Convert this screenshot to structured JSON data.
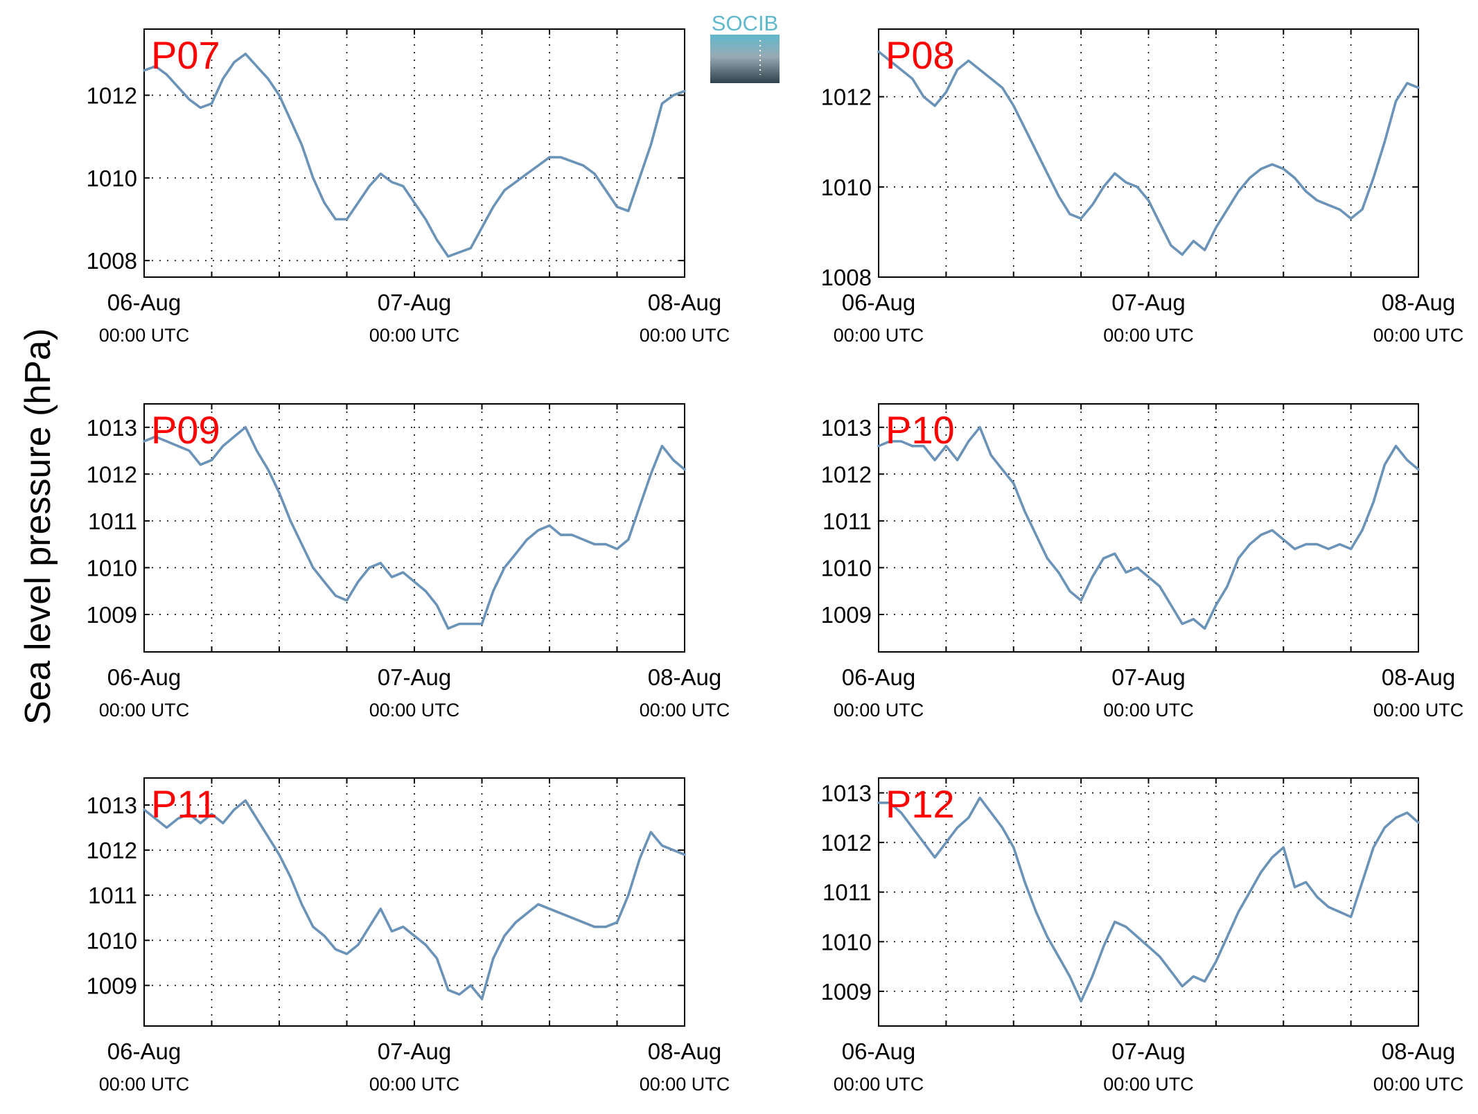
{
  "figure": {
    "ylabel": "Sea level pressure (hPa)",
    "logo": {
      "text": "SOCIB",
      "colors": [
        "#5fb8cc",
        "#98aab4",
        "#2f424c"
      ]
    },
    "line_color": "#6a93b7",
    "station_color": "#ff0000"
  },
  "chart_data": [
    {
      "type": "line",
      "title": "P07",
      "x_unit": "hours since 06-Aug 00:00 UTC",
      "xlim": [
        0,
        48
      ],
      "ylim": [
        1007.6,
        1013.6
      ],
      "yticks": [
        1008,
        1010,
        1012
      ],
      "xticks": [
        0,
        24,
        48
      ],
      "xtick_labels": [
        [
          "06-Aug",
          "00:00 UTC"
        ],
        [
          "07-Aug",
          "00:00 UTC"
        ],
        [
          "08-Aug",
          "00:00 UTC"
        ]
      ],
      "grid": true,
      "x": [
        0,
        1,
        2,
        3,
        4,
        5,
        6,
        7,
        8,
        9,
        10,
        11,
        12,
        13,
        14,
        15,
        16,
        17,
        18,
        19,
        20,
        21,
        22,
        23,
        24,
        25,
        26,
        27,
        28,
        29,
        30,
        31,
        32,
        33,
        34,
        35,
        36,
        37,
        38,
        39,
        40,
        41,
        42,
        43,
        44,
        45,
        46,
        47,
        48
      ],
      "values": [
        1012.6,
        1012.7,
        1012.5,
        1012.2,
        1011.9,
        1011.7,
        1011.8,
        1012.4,
        1012.8,
        1013.0,
        1012.7,
        1012.4,
        1012.0,
        1011.4,
        1010.8,
        1010.0,
        1009.4,
        1009.0,
        1009.0,
        1009.4,
        1009.8,
        1010.1,
        1009.9,
        1009.8,
        1009.4,
        1009.0,
        1008.5,
        1008.1,
        1008.2,
        1008.3,
        1008.8,
        1009.3,
        1009.7,
        1009.9,
        1010.1,
        1010.3,
        1010.5,
        1010.5,
        1010.4,
        1010.3,
        1010.1,
        1009.7,
        1009.3,
        1009.2,
        1010.0,
        1010.8,
        1011.8,
        1012.0,
        1012.1
      ]
    },
    {
      "type": "line",
      "title": "P08",
      "x_unit": "hours since 06-Aug 00:00 UTC",
      "xlim": [
        0,
        48
      ],
      "ylim": [
        1008,
        1013.5
      ],
      "yticks": [
        1008,
        1010,
        1012
      ],
      "xticks": [
        0,
        24,
        48
      ],
      "xtick_labels": [
        [
          "06-Aug",
          "00:00 UTC"
        ],
        [
          "07-Aug",
          "00:00 UTC"
        ],
        [
          "08-Aug",
          "00:00 UTC"
        ]
      ],
      "grid": true,
      "x": [
        0,
        1,
        2,
        3,
        4,
        5,
        6,
        7,
        8,
        9,
        10,
        11,
        12,
        13,
        14,
        15,
        16,
        17,
        18,
        19,
        20,
        21,
        22,
        23,
        24,
        25,
        26,
        27,
        28,
        29,
        30,
        31,
        32,
        33,
        34,
        35,
        36,
        37,
        38,
        39,
        40,
        41,
        42,
        43,
        44,
        45,
        46,
        47,
        48
      ],
      "values": [
        1013.0,
        1012.8,
        1012.6,
        1012.4,
        1012.0,
        1011.8,
        1012.1,
        1012.6,
        1012.8,
        1012.6,
        1012.4,
        1012.2,
        1011.8,
        1011.3,
        1010.8,
        1010.3,
        1009.8,
        1009.4,
        1009.3,
        1009.6,
        1010.0,
        1010.3,
        1010.1,
        1010.0,
        1009.7,
        1009.2,
        1008.7,
        1008.5,
        1008.8,
        1008.6,
        1009.1,
        1009.5,
        1009.9,
        1010.2,
        1010.4,
        1010.5,
        1010.4,
        1010.2,
        1009.9,
        1009.7,
        1009.6,
        1009.5,
        1009.3,
        1009.5,
        1010.2,
        1011.0,
        1011.9,
        1012.3,
        1012.2
      ]
    },
    {
      "type": "line",
      "title": "P09",
      "x_unit": "hours since 06-Aug 00:00 UTC",
      "xlim": [
        0,
        48
      ],
      "ylim": [
        1008.2,
        1013.5
      ],
      "yticks": [
        1009,
        1010,
        1011,
        1012,
        1013
      ],
      "xticks": [
        0,
        24,
        48
      ],
      "xtick_labels": [
        [
          "06-Aug",
          "00:00 UTC"
        ],
        [
          "07-Aug",
          "00:00 UTC"
        ],
        [
          "08-Aug",
          "00:00 UTC"
        ]
      ],
      "grid": true,
      "x": [
        0,
        1,
        2,
        3,
        4,
        5,
        6,
        7,
        8,
        9,
        10,
        11,
        12,
        13,
        14,
        15,
        16,
        17,
        18,
        19,
        20,
        21,
        22,
        23,
        24,
        25,
        26,
        27,
        28,
        29,
        30,
        31,
        32,
        33,
        34,
        35,
        36,
        37,
        38,
        39,
        40,
        41,
        42,
        43,
        44,
        45,
        46,
        47,
        48
      ],
      "values": [
        1012.7,
        1012.8,
        1012.7,
        1012.6,
        1012.5,
        1012.2,
        1012.3,
        1012.6,
        1012.8,
        1013.0,
        1012.5,
        1012.1,
        1011.6,
        1011.0,
        1010.5,
        1010.0,
        1009.7,
        1009.4,
        1009.3,
        1009.7,
        1010.0,
        1010.1,
        1009.8,
        1009.9,
        1009.7,
        1009.5,
        1009.2,
        1008.7,
        1008.8,
        1008.8,
        1008.8,
        1009.5,
        1010.0,
        1010.3,
        1010.6,
        1010.8,
        1010.9,
        1010.7,
        1010.7,
        1010.6,
        1010.5,
        1010.5,
        1010.4,
        1010.6,
        1011.3,
        1012.0,
        1012.6,
        1012.3,
        1012.1
      ]
    },
    {
      "type": "line",
      "title": "P10",
      "x_unit": "hours since 06-Aug 00:00 UTC",
      "xlim": [
        0,
        48
      ],
      "ylim": [
        1008.2,
        1013.5
      ],
      "yticks": [
        1009,
        1010,
        1011,
        1012,
        1013
      ],
      "xticks": [
        0,
        24,
        48
      ],
      "xtick_labels": [
        [
          "06-Aug",
          "00:00 UTC"
        ],
        [
          "07-Aug",
          "00:00 UTC"
        ],
        [
          "08-Aug",
          "00:00 UTC"
        ]
      ],
      "grid": true,
      "x": [
        0,
        1,
        2,
        3,
        4,
        5,
        6,
        7,
        8,
        9,
        10,
        11,
        12,
        13,
        14,
        15,
        16,
        17,
        18,
        19,
        20,
        21,
        22,
        23,
        24,
        25,
        26,
        27,
        28,
        29,
        30,
        31,
        32,
        33,
        34,
        35,
        36,
        37,
        38,
        39,
        40,
        41,
        42,
        43,
        44,
        45,
        46,
        47,
        48
      ],
      "values": [
        1012.6,
        1012.7,
        1012.7,
        1012.6,
        1012.6,
        1012.3,
        1012.6,
        1012.3,
        1012.7,
        1013.0,
        1012.4,
        1012.1,
        1011.8,
        1011.2,
        1010.7,
        1010.2,
        1009.9,
        1009.5,
        1009.3,
        1009.8,
        1010.2,
        1010.3,
        1009.9,
        1010.0,
        1009.8,
        1009.6,
        1009.2,
        1008.8,
        1008.9,
        1008.7,
        1009.2,
        1009.6,
        1010.2,
        1010.5,
        1010.7,
        1010.8,
        1010.6,
        1010.4,
        1010.5,
        1010.5,
        1010.4,
        1010.5,
        1010.4,
        1010.8,
        1011.4,
        1012.2,
        1012.6,
        1012.3,
        1012.1
      ]
    },
    {
      "type": "line",
      "title": "P11",
      "x_unit": "hours since 06-Aug 00:00 UTC",
      "xlim": [
        0,
        48
      ],
      "ylim": [
        1008.1,
        1013.6
      ],
      "yticks": [
        1009,
        1010,
        1011,
        1012,
        1013
      ],
      "xticks": [
        0,
        24,
        48
      ],
      "xtick_labels": [
        [
          "06-Aug",
          "00:00 UTC"
        ],
        [
          "07-Aug",
          "00:00 UTC"
        ],
        [
          "08-Aug",
          "00:00 UTC"
        ]
      ],
      "grid": true,
      "x": [
        0,
        1,
        2,
        3,
        4,
        5,
        6,
        7,
        8,
        9,
        10,
        11,
        12,
        13,
        14,
        15,
        16,
        17,
        18,
        19,
        20,
        21,
        22,
        23,
        24,
        25,
        26,
        27,
        28,
        29,
        30,
        31,
        32,
        33,
        34,
        35,
        36,
        37,
        38,
        39,
        40,
        41,
        42,
        43,
        44,
        45,
        46,
        47,
        48
      ],
      "values": [
        1012.9,
        1012.7,
        1012.5,
        1012.7,
        1012.8,
        1012.6,
        1012.8,
        1012.6,
        1012.9,
        1013.1,
        1012.7,
        1012.3,
        1011.9,
        1011.4,
        1010.8,
        1010.3,
        1010.1,
        1009.8,
        1009.7,
        1009.9,
        1010.3,
        1010.7,
        1010.2,
        1010.3,
        1010.1,
        1009.9,
        1009.6,
        1008.9,
        1008.8,
        1009.0,
        1008.7,
        1009.6,
        1010.1,
        1010.4,
        1010.6,
        1010.8,
        1010.7,
        1010.6,
        1010.5,
        1010.4,
        1010.3,
        1010.3,
        1010.4,
        1011.0,
        1011.8,
        1012.4,
        1012.1,
        1012.0,
        1011.9
      ]
    },
    {
      "type": "line",
      "title": "P12",
      "x_unit": "hours since 06-Aug 00:00 UTC",
      "xlim": [
        0,
        48
      ],
      "ylim": [
        1008.3,
        1013.3
      ],
      "yticks": [
        1009,
        1010,
        1011,
        1012,
        1013
      ],
      "xticks": [
        0,
        24,
        48
      ],
      "xtick_labels": [
        [
          "06-Aug",
          "00:00 UTC"
        ],
        [
          "07-Aug",
          "00:00 UTC"
        ],
        [
          "08-Aug",
          "00:00 UTC"
        ]
      ],
      "grid": true,
      "x": [
        0,
        1,
        2,
        3,
        4,
        5,
        6,
        7,
        8,
        9,
        10,
        11,
        12,
        13,
        14,
        15,
        16,
        17,
        18,
        19,
        20,
        21,
        22,
        23,
        24,
        25,
        26,
        27,
        28,
        29,
        30,
        31,
        32,
        33,
        34,
        35,
        36,
        37,
        38,
        39,
        40,
        41,
        42,
        43,
        44,
        45,
        46,
        47,
        48
      ],
      "values": [
        1012.8,
        1012.8,
        1012.6,
        1012.3,
        1012.0,
        1011.7,
        1012.0,
        1012.3,
        1012.5,
        1012.9,
        1012.6,
        1012.3,
        1011.9,
        1011.2,
        1010.6,
        1010.1,
        1009.7,
        1009.3,
        1008.8,
        1009.3,
        1009.9,
        1010.4,
        1010.3,
        1010.1,
        1009.9,
        1009.7,
        1009.4,
        1009.1,
        1009.3,
        1009.2,
        1009.6,
        1010.1,
        1010.6,
        1011.0,
        1011.4,
        1011.7,
        1011.9,
        1011.1,
        1011.2,
        1010.9,
        1010.7,
        1010.6,
        1010.5,
        1011.2,
        1011.9,
        1012.3,
        1012.5,
        1012.6,
        1012.4
      ]
    }
  ]
}
